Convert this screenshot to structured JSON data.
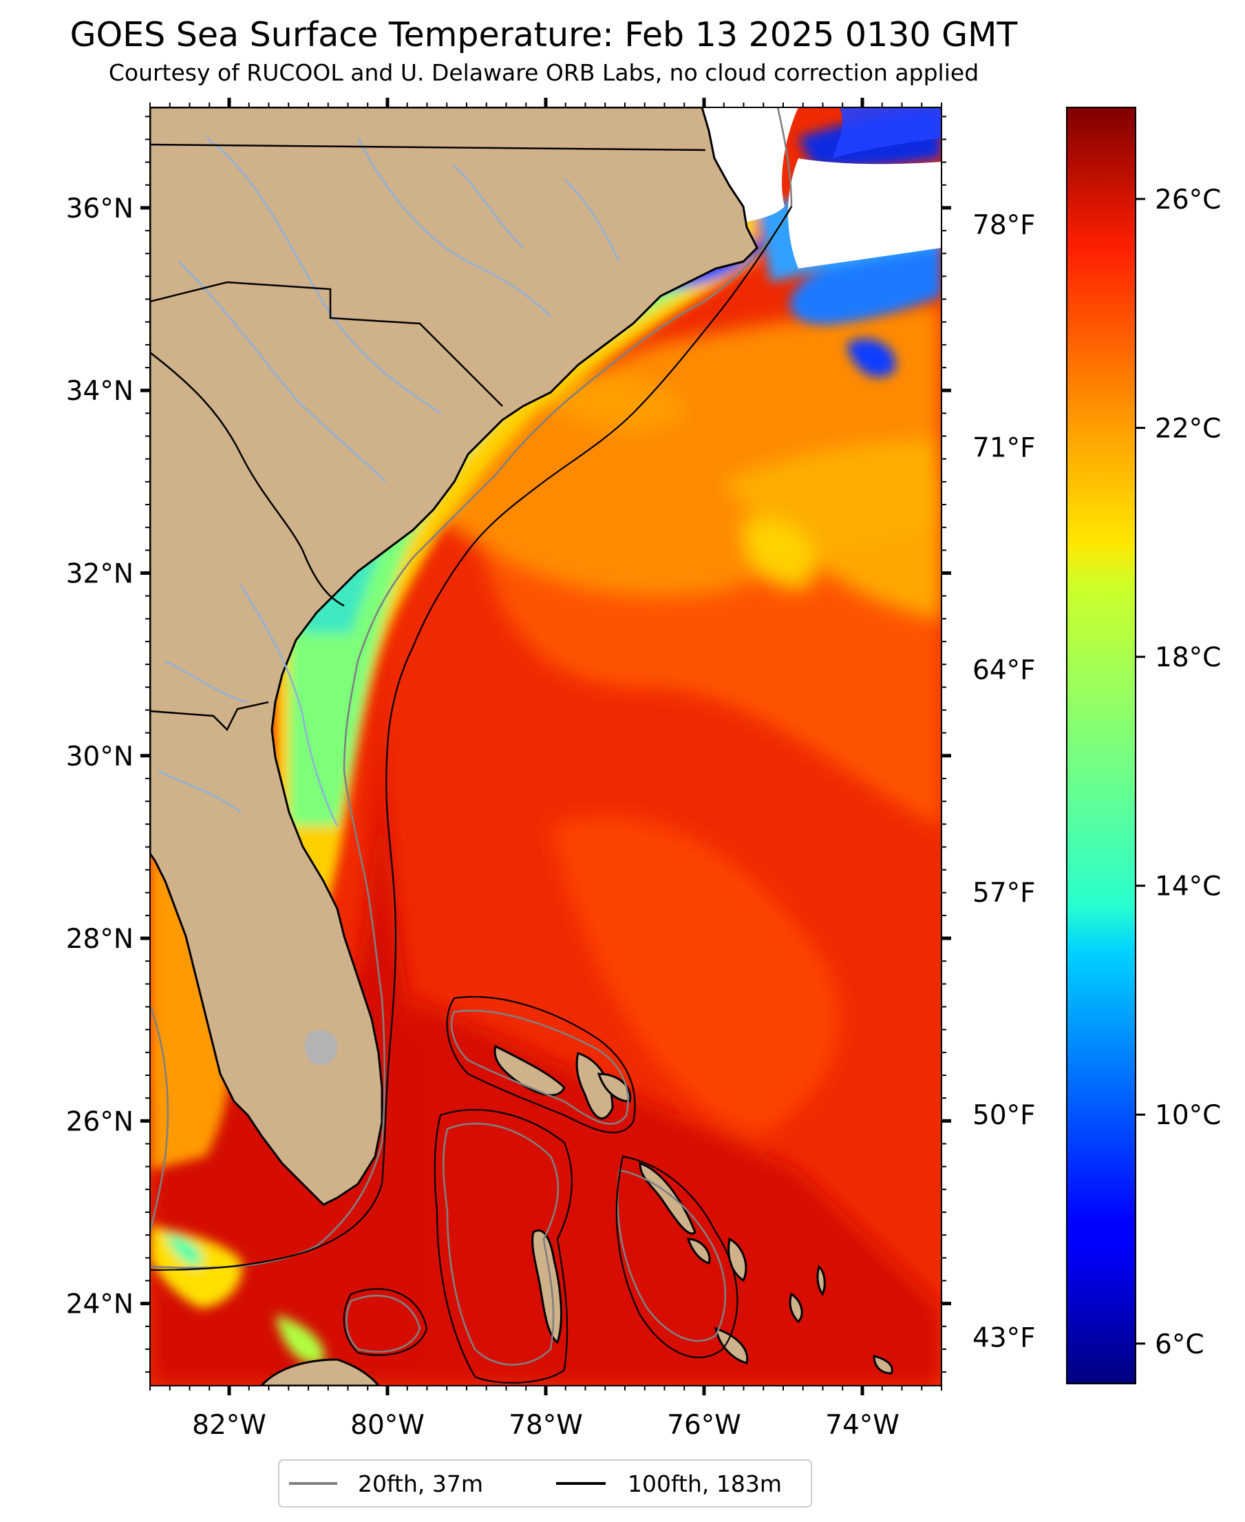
{
  "title": "GOES Sea Surface Temperature: Feb 13 2025 0130 GMT",
  "subtitle": "Courtesy of RUCOOL and U. Delaware ORB Labs, no cloud correction applied",
  "map": {
    "lon_range": [
      -83.0,
      -73.0
    ],
    "lat_range": [
      23.1,
      37.1
    ],
    "lon_ticks": [
      {
        "value": -82,
        "label": "82°W"
      },
      {
        "value": -80,
        "label": "80°W"
      },
      {
        "value": -78,
        "label": "78°W"
      },
      {
        "value": -76,
        "label": "76°W"
      },
      {
        "value": -74,
        "label": "74°W"
      }
    ],
    "lat_ticks": [
      {
        "value": 36,
        "label": "36°N"
      },
      {
        "value": 34,
        "label": "34°N"
      },
      {
        "value": 32,
        "label": "32°N"
      },
      {
        "value": 30,
        "label": "30°N"
      },
      {
        "value": 28,
        "label": "28°N"
      },
      {
        "value": 26,
        "label": "26°N"
      },
      {
        "value": 24,
        "label": "24°N"
      }
    ],
    "fahrenheit_ticks": [
      {
        "value": 78,
        "label": "78°F"
      },
      {
        "value": 71,
        "label": "71°F"
      },
      {
        "value": 64,
        "label": "64°F"
      },
      {
        "value": 57,
        "label": "57°F"
      },
      {
        "value": 50,
        "label": "50°F"
      },
      {
        "value": 43,
        "label": "43°F"
      }
    ],
    "land_color": "#cfb28a",
    "lake_color": "#b3b3b3",
    "river_color": "#8fb0d9"
  },
  "colorbar": {
    "range_c": [
      5.3,
      27.6
    ],
    "colormap": "jet",
    "ticks": [
      {
        "value": 26,
        "label": "26°C"
      },
      {
        "value": 22,
        "label": "22°C"
      },
      {
        "value": 18,
        "label": "18°C"
      },
      {
        "value": 14,
        "label": "14°C"
      },
      {
        "value": 10,
        "label": "10°C"
      },
      {
        "value": 6,
        "label": "6°C"
      }
    ]
  },
  "legend": {
    "items": [
      {
        "label": "20fth, 37m",
        "color": "#808080"
      },
      {
        "label": "100fth, 183m",
        "color": "#000000"
      }
    ]
  }
}
